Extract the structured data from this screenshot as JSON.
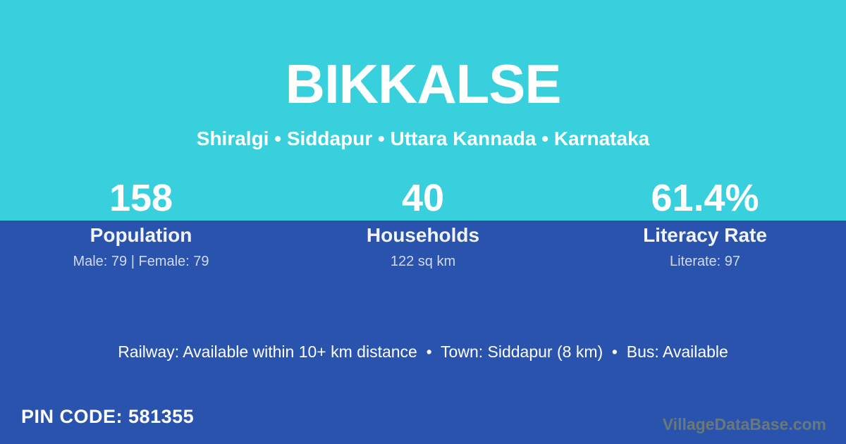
{
  "colors": {
    "top_band": "#38d0dd",
    "background": "#2a53ae",
    "text": "#ffffff",
    "muted_text": "#c8d4ec",
    "watermark": "#6e7b76"
  },
  "header": {
    "title": "BIKKALSE",
    "location_line": "Shiralgi • Siddapur • Uttara Kannada • Karnataka"
  },
  "stats": {
    "items": [
      {
        "value": "158",
        "label": "Population",
        "sub": "Male: 79 | Female: 79"
      },
      {
        "value": "40",
        "label": "Households",
        "sub": "122 sq km"
      },
      {
        "value": "61.4%",
        "label": "Literacy Rate",
        "sub": "Literate: 97"
      }
    ]
  },
  "amenities": {
    "line": "Railway: Available within 10+ km distance  •  Town: Siddapur (8 km)  •  Bus: Available"
  },
  "footer": {
    "pin_label": "PIN CODE:",
    "pin_value": "581355",
    "watermark": "VillageDataBase.com"
  }
}
